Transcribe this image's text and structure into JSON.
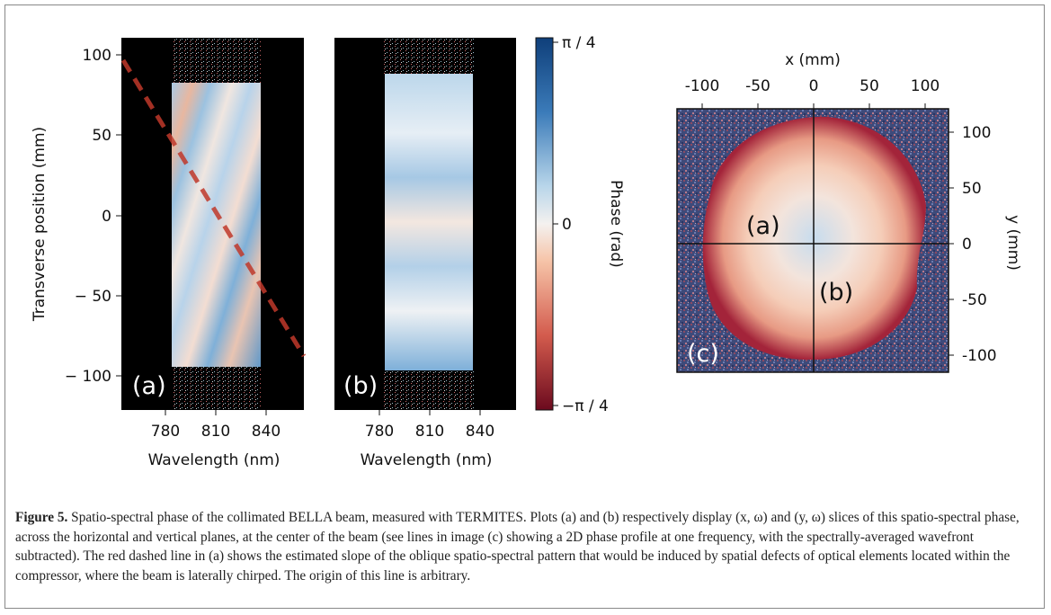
{
  "figure": {
    "panel_a": {
      "label": "(a)",
      "xlabel": "Wavelength (nm)",
      "ylabel": "Transverse position (mm)",
      "xticks": [
        "780",
        "810",
        "840"
      ],
      "yticks": [
        "100",
        "50",
        "0",
        "− 50",
        "− 100"
      ]
    },
    "panel_b": {
      "label": "(b)",
      "xlabel": "Wavelength (nm)",
      "xticks": [
        "780",
        "810",
        "840"
      ]
    },
    "colorbar": {
      "label": "Phase (rad)",
      "ticks": [
        "π / 4",
        "0",
        "−π / 4"
      ]
    },
    "panel_c": {
      "label": "(c)",
      "line_label_a": "(a)",
      "line_label_b": "(b)",
      "xlabel": "x (mm)",
      "ylabel": "y (mm)",
      "xticks": [
        "-100",
        "-50",
        "0",
        "50",
        "100"
      ],
      "yticks": [
        "100",
        "50",
        "0",
        "-50",
        "-100"
      ]
    }
  },
  "colors": {
    "phase_pos": "#1a4f8c",
    "phase_zero": "#f4f1ef",
    "phase_neg": "#8c0f22",
    "dashed_line": "#c0392b"
  },
  "caption": {
    "title": "Figure 5.",
    "text": " Spatio-spectral phase of the collimated BELLA beam, measured with TERMITES. Plots (a) and (b) respectively display (x, ω) and (y, ω) slices of this spatio-spectral phase, across the horizontal and vertical planes, at the center of the beam (see lines in image (c) showing a 2D phase profile at one frequency, with the spectrally-averaged wavefront subtracted). The red dashed line in (a) shows the estimated slope of the oblique spatio-spectral pattern that would be induced by spatial defects of optical elements located within the compressor, where the beam is laterally chirped. The origin of this line is arbitrary."
  }
}
